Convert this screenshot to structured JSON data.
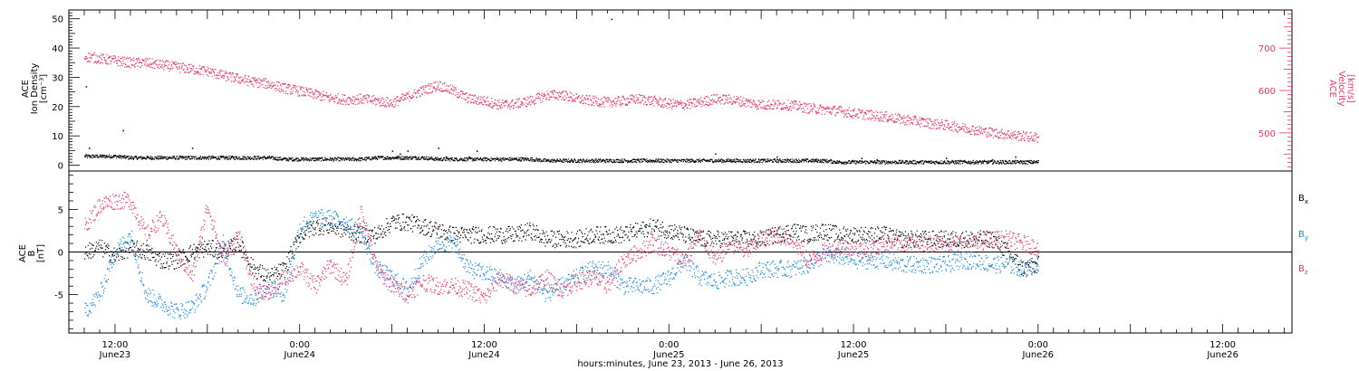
{
  "colors": {
    "axis": "#000000",
    "velocity": "#e8336a",
    "density": "#000000",
    "bx": "#000000",
    "by": "#1a8ae0",
    "bz": "#e8336a"
  },
  "chart_data": [
    {
      "type": "scatter",
      "panel": "top",
      "ylabel_left": [
        "ACE",
        "Ion Density",
        "[cm⁻³]"
      ],
      "ylabel_right": [
        "ACE",
        "Velocity",
        "[km/s]"
      ],
      "ylim_left": [
        -2,
        53
      ],
      "yticks_left": [
        "0",
        "10",
        "20",
        "30",
        "40",
        "50"
      ],
      "ylim_right": [
        410,
        790
      ],
      "yticks_right": [
        "500",
        "600",
        "700"
      ],
      "grid": false,
      "series": [
        {
          "key": "density",
          "axis": "left",
          "t": [
            0,
            2,
            4,
            6,
            8,
            10,
            12,
            14,
            16,
            18,
            20,
            22,
            24,
            26,
            28,
            30,
            32,
            34,
            36,
            38,
            40,
            42,
            44,
            46,
            48,
            50,
            52,
            54,
            56,
            58,
            60,
            62,
            64,
            66,
            68,
            70,
            72,
            74,
            76,
            78,
            80,
            82,
            84,
            86,
            88,
            90,
            92,
            94,
            96,
            98,
            100,
            102,
            104,
            106,
            108,
            110,
            112,
            114,
            116,
            118,
            120,
            122,
            124
          ],
          "v": [
            3,
            3,
            3,
            2.5,
            2.5,
            2.5,
            2.5,
            2.5,
            2.5,
            2.5,
            2.5,
            2.5,
            2.5,
            2,
            2,
            2,
            2,
            2,
            2,
            2.5,
            2.5,
            2.5,
            2.5,
            2,
            2,
            2,
            2,
            2,
            2,
            2,
            1.5,
            1.5,
            1.5,
            1.5,
            1.5,
            1.5,
            1.5,
            1.5,
            1.5,
            1.5,
            1.5,
            1.5,
            1.5,
            1.5,
            1.5,
            1.5,
            1.5,
            1.5,
            1.5,
            1,
            1,
            1,
            1,
            1,
            1,
            1,
            1,
            1,
            1,
            1,
            1,
            1,
            1
          ]
        },
        {
          "key": "velocity",
          "axis": "right",
          "t": [
            0,
            2,
            4,
            6,
            8,
            10,
            12,
            14,
            16,
            18,
            20,
            22,
            24,
            26,
            28,
            30,
            32,
            34,
            36,
            38,
            40,
            42,
            44,
            46,
            48,
            50,
            52,
            54,
            56,
            58,
            60,
            62,
            64,
            66,
            68,
            70,
            72,
            74,
            76,
            78,
            80,
            82,
            84,
            86,
            88,
            90,
            92,
            94,
            96,
            98,
            100,
            102,
            104,
            106,
            108,
            110,
            112,
            114,
            116,
            118,
            120,
            122,
            124
          ],
          "v": [
            680,
            675,
            670,
            665,
            665,
            660,
            655,
            650,
            645,
            635,
            628,
            620,
            615,
            605,
            598,
            590,
            582,
            578,
            580,
            575,
            570,
            585,
            600,
            612,
            598,
            580,
            575,
            566,
            568,
            576,
            588,
            590,
            580,
            575,
            572,
            575,
            580,
            575,
            568,
            566,
            572,
            580,
            578,
            572,
            566,
            566,
            565,
            558,
            555,
            552,
            546,
            542,
            538,
            532,
            528,
            522,
            518,
            512,
            506,
            500,
            496,
            492,
            488
          ]
        },
        {
          "key": "density_spikes",
          "axis": "left",
          "t": [
            0.2,
            0.6,
            5,
            11,
            14,
            40,
            40.5,
            41,
            42,
            43,
            46,
            47,
            50,
            51,
            82,
            84,
            90,
            95,
            101,
            103,
            112,
            118,
            121
          ],
          "v": [
            27,
            6,
            12,
            3,
            6,
            5,
            3,
            4,
            5,
            3,
            6,
            3,
            3,
            5,
            4,
            2,
            3,
            2,
            2.5,
            2,
            2.5,
            2,
            3
          ]
        },
        {
          "key": "density_outlier",
          "axis": "left",
          "t": [
            68.5
          ],
          "v": [
            50
          ]
        }
      ]
    },
    {
      "type": "scatter",
      "panel": "bottom",
      "ylabel_left": [
        "ACE",
        "B",
        "[nT]"
      ],
      "ylim": [
        -9.5,
        9.5
      ],
      "yticks": [
        "-5",
        "0",
        "5"
      ],
      "zero_line": true,
      "grid": false,
      "legend": {
        "position": "right",
        "entries": [
          {
            "key": "bx",
            "letter": "B",
            "sub": "x"
          },
          {
            "key": "by",
            "letter": "B",
            "sub": "y"
          },
          {
            "key": "bz",
            "letter": "B",
            "sub": "z"
          }
        ]
      },
      "series": [
        {
          "key": "bx",
          "t": [
            0,
            2,
            4,
            6,
            8,
            10,
            12,
            14,
            16,
            18,
            20,
            22,
            24,
            26,
            28,
            30,
            32,
            34,
            36,
            38,
            40,
            42,
            44,
            46,
            48,
            50,
            52,
            54,
            56,
            58,
            60,
            62,
            64,
            66,
            68,
            70,
            72,
            74,
            76,
            78,
            80,
            82,
            84,
            86,
            88,
            90,
            92,
            94,
            96,
            98,
            100,
            102,
            104,
            106,
            108,
            110,
            112,
            114,
            116,
            118,
            120,
            122,
            124
          ],
          "v": [
            0,
            0.5,
            -0.5,
            0.5,
            0,
            -1,
            -1,
            0,
            0.5,
            0,
            1,
            -2,
            -3,
            -2,
            2,
            3,
            3,
            2.5,
            2,
            2,
            3.5,
            3.5,
            3,
            2.5,
            2,
            2,
            2,
            2,
            2,
            2.5,
            1.5,
            1.5,
            1.5,
            2,
            2,
            2,
            2.5,
            3,
            2.5,
            2,
            1.5,
            1.5,
            1.5,
            1.5,
            1.5,
            2,
            2.5,
            2,
            2.5,
            2,
            2,
            2,
            2,
            1.5,
            1.5,
            1.5,
            1.5,
            1.5,
            1.5,
            1.5,
            0,
            -2,
            -1.5
          ]
        },
        {
          "key": "by",
          "t": [
            0,
            2,
            4,
            6,
            8,
            10,
            12,
            14,
            16,
            18,
            20,
            22,
            24,
            26,
            28,
            30,
            32,
            34,
            36,
            38,
            40,
            42,
            44,
            46,
            48,
            50,
            52,
            54,
            56,
            58,
            60,
            62,
            64,
            66,
            68,
            70,
            72,
            74,
            76,
            78,
            80,
            82,
            84,
            86,
            88,
            90,
            92,
            94,
            96,
            98,
            100,
            102,
            104,
            106,
            108,
            110,
            112,
            114,
            116,
            118,
            120,
            122,
            124
          ],
          "v": [
            -7,
            -5,
            0,
            2,
            -5,
            -6,
            -7,
            -6.5,
            -4,
            1,
            -5,
            -5.5,
            -4,
            -5,
            3,
            4,
            4,
            3.5,
            2,
            -2,
            -3,
            -4.5,
            -1,
            1,
            1,
            -2,
            -2.5,
            -3,
            -4,
            -3,
            -5,
            -4,
            -3,
            -2,
            -2,
            -4,
            -4,
            -4,
            -3,
            -1,
            -3,
            -3.5,
            -3,
            -3,
            -2,
            -2,
            -2,
            -1.5,
            -0.5,
            -0.5,
            -1,
            -1,
            -1,
            -1.5,
            -1.5,
            -1.5,
            -1.5,
            -1,
            -1,
            -1.5,
            -1.5,
            -2,
            -1.5
          ]
        },
        {
          "key": "bz",
          "t": [
            0,
            2,
            4,
            6,
            8,
            10,
            12,
            14,
            16,
            18,
            20,
            22,
            24,
            26,
            28,
            30,
            32,
            34,
            36,
            38,
            40,
            42,
            44,
            46,
            48,
            50,
            52,
            54,
            56,
            58,
            60,
            62,
            64,
            66,
            68,
            70,
            72,
            74,
            76,
            78,
            80,
            82,
            84,
            86,
            88,
            90,
            92,
            94,
            96,
            98,
            100,
            102,
            104,
            106,
            108,
            110,
            112,
            114,
            116,
            118,
            120,
            122,
            124
          ],
          "v": [
            3,
            5.5,
            6,
            6,
            2,
            4,
            0,
            -3,
            5.5,
            -1,
            2,
            -4,
            -5,
            -3,
            -2,
            -4,
            -1.5,
            -3.5,
            5,
            -2,
            -4,
            -5,
            -3.5,
            -4,
            -4,
            -4.5,
            -5.5,
            -3,
            -4,
            -4.5,
            -3,
            -4.5,
            -3.5,
            -3,
            -4,
            -1,
            0,
            1,
            0,
            -1,
            2,
            -1,
            1,
            0,
            1.5,
            2,
            1.5,
            -1,
            0,
            0.5,
            0.5,
            0,
            1,
            1,
            1,
            1,
            1,
            1,
            1,
            1.5,
            1.5,
            1,
            0.5
          ]
        }
      ]
    }
  ],
  "x_axis": {
    "xlim": [
      -2,
      157
    ],
    "major_ticks": [
      {
        "t": 4,
        "time": "12:00",
        "date": "June23"
      },
      {
        "t": 28,
        "time": "0:00",
        "date": "June24"
      },
      {
        "t": 52,
        "time": "12:00",
        "date": "June24"
      },
      {
        "t": 76,
        "time": "0:00",
        "date": "June25"
      },
      {
        "t": 100,
        "time": "12:00",
        "date": "June25"
      },
      {
        "t": 124,
        "time": "0:00",
        "date": "June26"
      },
      {
        "t": 148,
        "time": "12:00",
        "date": "June26"
      }
    ],
    "xlabel": "hours:minutes, June 23, 2013 - June 26, 2013"
  }
}
